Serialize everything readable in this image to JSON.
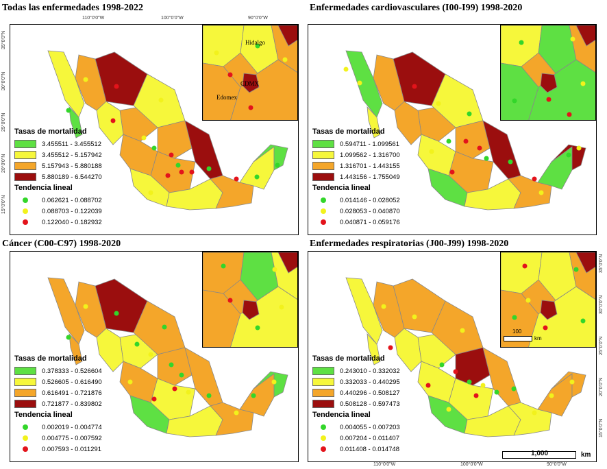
{
  "colors": {
    "green": "#5ee043",
    "yellow": "#f6f73b",
    "orange": "#f4a62a",
    "darkred": "#9b0e0e",
    "dot_green": "#33d62a",
    "dot_yellow": "#f2f21c",
    "dot_red": "#e3131b",
    "border": "#888888"
  },
  "longitude_labels": [
    "110°0'0\"W",
    "100°0'0\"W",
    "90°0'0\"W"
  ],
  "latitude_labels": [
    "35°0'0\"N",
    "30°0'0\"N",
    "25°0'0\"N",
    "20°0'0\"N",
    "15°0'0\"N"
  ],
  "panels": [
    {
      "title": "Todas las enfermedades 1998-2022",
      "colors": [
        "darkred",
        "yellow",
        "orange",
        "green",
        "orange",
        "yellow",
        "orange",
        "yellow",
        "orange",
        "darkred",
        "orange",
        "yellow",
        "yellow",
        "orange",
        "yellow",
        "green"
      ],
      "inset_labels": [
        "Hidalgo",
        "CDMX",
        "Edomex"
      ],
      "mortality_title": "Tasas de mortalidad",
      "mortality": [
        {
          "range": "3.455511 - 3.455512",
          "color": "green"
        },
        {
          "range": "3.455512 - 5.157942",
          "color": "yellow"
        },
        {
          "range": "5.157943 - 5.880188",
          "color": "orange"
        },
        {
          "range": "5.880189 - 6.544270",
          "color": "darkred"
        }
      ],
      "trend_title": "Tendencia lineal",
      "trend": [
        {
          "range": "0.062621 - 0.088702",
          "color": "dot_green"
        },
        {
          "range": "0.088703 - 0.122039",
          "color": "dot_yellow"
        },
        {
          "range": "0.122040 - 0.182932",
          "color": "dot_red"
        }
      ]
    },
    {
      "title": "Enfermedades cardiovasculares (I00-I99) 1998-2020",
      "colors": [
        "darkred",
        "green",
        "orange",
        "yellow",
        "orange",
        "yellow",
        "orange",
        "orange",
        "yellow",
        "darkred",
        "orange",
        "green",
        "yellow",
        "orange",
        "green",
        "darkred"
      ],
      "inset_labels": [],
      "mortality_title": "Tasas de mortalidad",
      "mortality": [
        {
          "range": "0.594711 - 1.099561",
          "color": "green"
        },
        {
          "range": "1.099562 - 1.316700",
          "color": "yellow"
        },
        {
          "range": "1.316701 - 1.443155",
          "color": "orange"
        },
        {
          "range": "1.443156 - 1.755049",
          "color": "darkred"
        }
      ],
      "trend_title": "Tendencia lineal",
      "trend": [
        {
          "range": "0.014146 - 0.028052",
          "color": "dot_green"
        },
        {
          "range": "0.028053 - 0.040870",
          "color": "dot_yellow"
        },
        {
          "range": "0.040871 - 0.059176",
          "color": "dot_red"
        }
      ]
    },
    {
      "title": "Cáncer (C00-C97) 1998-2020",
      "colors": [
        "darkred",
        "orange",
        "orange",
        "orange",
        "yellow",
        "orange",
        "orange",
        "yellow",
        "orange",
        "orange",
        "yellow",
        "green",
        "yellow",
        "orange",
        "orange",
        "green"
      ],
      "inset_labels": [],
      "mortality_title": "Tasas de mortalidad",
      "mortality": [
        {
          "range": "0.378333 - 0.526604",
          "color": "green"
        },
        {
          "range": "0.526605 - 0.616490",
          "color": "yellow"
        },
        {
          "range": "0.616491 - 0.721876",
          "color": "orange"
        },
        {
          "range": "0.721877 - 0.839802",
          "color": "darkred"
        }
      ],
      "trend_title": "Tendencia lineal",
      "trend": [
        {
          "range": "0.002019 - 0.004774",
          "color": "dot_green"
        },
        {
          "range": "0.004775 - 0.007592",
          "color": "dot_yellow"
        },
        {
          "range": "0.007593 - 0.011291",
          "color": "dot_red"
        }
      ]
    },
    {
      "title": "Enfermedades respiratorias (J00-J99) 1998-2020",
      "colors": [
        "orange",
        "yellow",
        "orange",
        "yellow",
        "yellow",
        "orange",
        "darkred",
        "yellow",
        "yellow",
        "orange",
        "yellow",
        "green",
        "yellow",
        "yellow",
        "orange",
        "orange"
      ],
      "inset_labels": [],
      "mortality_title": "Tasas de mortalidad",
      "mortality": [
        {
          "range": "0.243010 - 0.332032",
          "color": "green"
        },
        {
          "range": "0.332033 - 0.440295",
          "color": "yellow"
        },
        {
          "range": "0.440296 - 0.508127",
          "color": "orange"
        },
        {
          "range": "0.508128 - 0.597473",
          "color": "darkred"
        }
      ],
      "trend_title": "Tendencia lineal",
      "trend": [
        {
          "range": "0.004055 - 0.007203",
          "color": "dot_green"
        },
        {
          "range": "0.007204 - 0.011407",
          "color": "dot_yellow"
        },
        {
          "range": "0.011408 - 0.014748",
          "color": "dot_red"
        }
      ]
    }
  ],
  "inset_scale_label": "100",
  "inset_scale_unit": "km",
  "scale_label": "1,000",
  "scale_unit": "km"
}
